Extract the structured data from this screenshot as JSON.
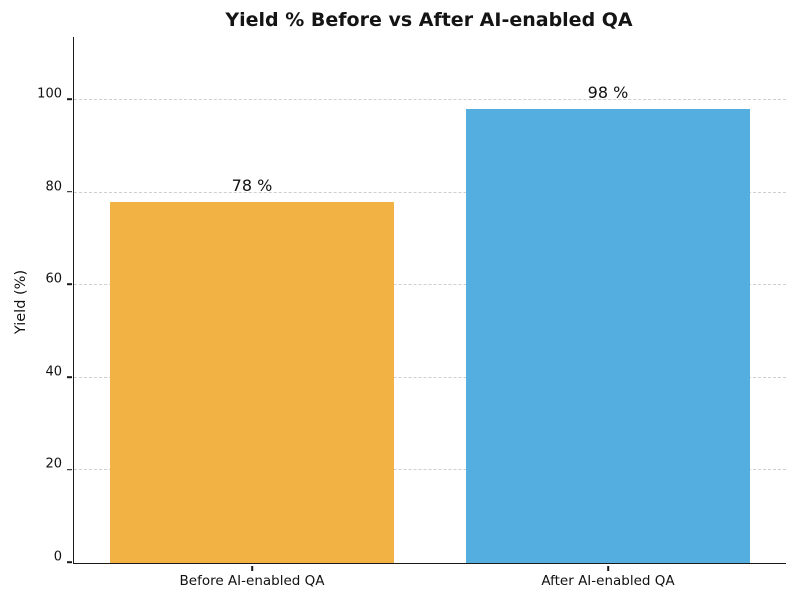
{
  "chart_data": {
    "type": "bar",
    "title": "Yield % Before vs After AI-enabled QA",
    "categories": [
      "Before AI-enabled QA",
      "After AI-enabled QA"
    ],
    "values": [
      78,
      98
    ],
    "bar_labels": [
      "78 %",
      "98 %"
    ],
    "bar_colors": [
      "#F2B344",
      "#55AEE0"
    ],
    "xlabel": "",
    "ylabel": "Yield (%)",
    "yticks": [
      0,
      20,
      40,
      60,
      80,
      100
    ],
    "ylim": [
      0,
      113.6
    ],
    "grid": "horizontal-dashed",
    "grid_color": "#cfcfcf",
    "spine_color": "#1a1a1a",
    "text_color": "#111111",
    "background_color": "#ffffff",
    "legend": "none"
  }
}
